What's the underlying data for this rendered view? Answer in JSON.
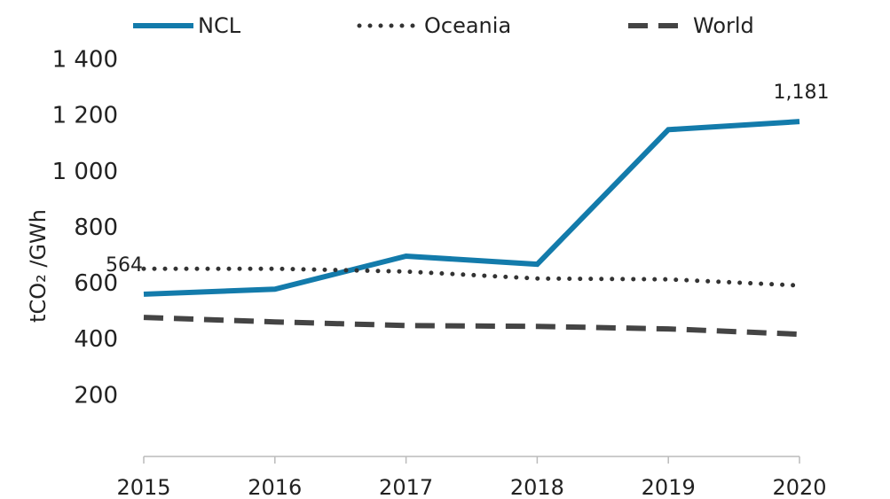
{
  "chart_data": {
    "type": "line",
    "y_label": "tCO₂ /GWh",
    "categories": [
      "2015",
      "2016",
      "2017",
      "2018",
      "2019",
      "2020"
    ],
    "series": [
      {
        "name": "NCL",
        "color": "#137bab",
        "style": "solid",
        "values": [
          564,
          582,
          700,
          671,
          1152,
          1181
        ],
        "value_labels": [
          "564",
          null,
          null,
          null,
          null,
          "1,181"
        ]
      },
      {
        "name": "Oceania",
        "color": "#333333",
        "style": "dotted",
        "values": [
          655,
          655,
          645,
          620,
          617,
          595
        ]
      },
      {
        "name": "World",
        "color": "#444444",
        "style": "dashed",
        "values": [
          481,
          465,
          452,
          449,
          440,
          421
        ]
      }
    ],
    "ylim": [
      0,
      1400
    ],
    "yticks": [
      200,
      400,
      600,
      800,
      {
        "value": 1000,
        "label": "1 000"
      },
      {
        "value": 1200,
        "label": "1 200"
      },
      {
        "value": 1400,
        "label": "1 400"
      }
    ],
    "grid": false,
    "legend": "top"
  }
}
